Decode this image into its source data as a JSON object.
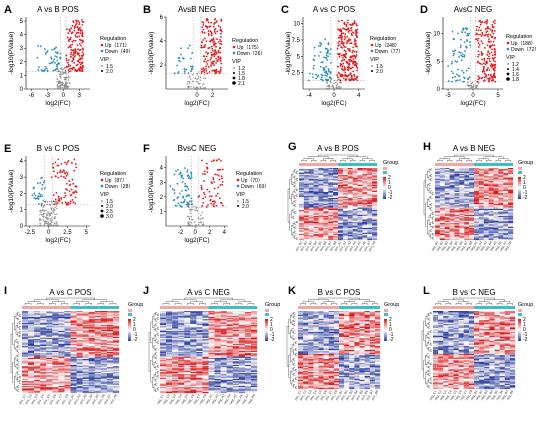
{
  "figure": {
    "title": ""
  },
  "colors": {
    "up": "#e41a1c",
    "down": "#2b8cbe",
    "ns": "#8c8c8c",
    "heat_high": "#d7191c",
    "heat_mid": "#ffffff",
    "heat_low": "#2c3e9e",
    "group_a": "#f4a6a0",
    "group_b": "#3cc0c5"
  },
  "chart_data": [
    {
      "id": "A",
      "type": "scatter",
      "title": "A vs B POS",
      "xlabel": "log2(FC)",
      "ylabel": "-log10(PValue)",
      "xlim": [
        -7,
        5
      ],
      "ylim": [
        0,
        5.3
      ],
      "xticks": [
        -6,
        -3,
        0,
        3
      ],
      "yticks": [
        0,
        1,
        2,
        3,
        4,
        5
      ],
      "legend": {
        "heading": "Regulation",
        "up": "Up（171）",
        "down": "Down（49）",
        "vip_heading": "VIP",
        "vip": [
          "1.5",
          "2.0"
        ]
      },
      "up_count": 171,
      "down_count": 49,
      "ns_count": 120,
      "up_range": {
        "x": [
          0.5,
          3.8
        ],
        "y": [
          1.3,
          5.1
        ]
      },
      "down_range": {
        "x": [
          -5.5,
          -0.5
        ],
        "y": [
          1.3,
          3.2
        ]
      }
    },
    {
      "id": "B",
      "type": "scatter",
      "title": "AvsB NEG",
      "xlabel": "log2(FC)",
      "ylabel": "-log10(PValue)",
      "xlim": [
        -4,
        4
      ],
      "ylim": [
        0,
        6
      ],
      "xticks": [
        0,
        2
      ],
      "yticks": [
        2,
        4,
        6
      ],
      "legend": {
        "heading": "Regulation",
        "up": "Up（175）",
        "down": "Down（26）",
        "vip_heading": "VIP",
        "vip": [
          "1.2",
          "1.5",
          "1.8",
          "2.1"
        ]
      },
      "up_count": 175,
      "down_count": 26,
      "ns_count": 60,
      "up_range": {
        "x": [
          0.5,
          3.2
        ],
        "y": [
          1.3,
          6.0
        ]
      },
      "down_range": {
        "x": [
          -3.5,
          -0.5
        ],
        "y": [
          1.3,
          3.8
        ]
      }
    },
    {
      "id": "C",
      "type": "scatter",
      "title": "A vs C POS",
      "xlabel": "log2(FC)",
      "ylabel": "-log10(PValue)",
      "xlim": [
        -5,
        5
      ],
      "ylim": [
        0,
        11
      ],
      "xticks": [
        -4,
        0,
        4
      ],
      "yticks": [
        2.5,
        5.0,
        7.5,
        10.0
      ],
      "legend": {
        "heading": "Regulation",
        "up": "Up（248）",
        "down": "Down（77）",
        "vip_heading": "VIP",
        "vip": [
          "1.5",
          "2.0"
        ]
      },
      "up_count": 248,
      "down_count": 77,
      "ns_count": 60,
      "up_range": {
        "x": [
          0.5,
          3.8
        ],
        "y": [
          1.3,
          10.5
        ]
      },
      "down_range": {
        "x": [
          -4.2,
          -0.5
        ],
        "y": [
          1.3,
          8.0
        ]
      }
    },
    {
      "id": "D",
      "type": "scatter",
      "title": "AvsC NEG",
      "xlabel": "log2(FC)",
      "ylabel": "-log10(PValue)",
      "xlim": [
        -6,
        6
      ],
      "ylim": [
        0,
        13
      ],
      "xticks": [
        -5,
        0,
        5
      ],
      "yticks": [
        0,
        5,
        10
      ],
      "legend": {
        "heading": "Regulation",
        "up": "Up（188）",
        "down": "Down（72）",
        "vip_heading": "VIP",
        "vip": [
          "1.2",
          "1.4",
          "1.6",
          "1.8"
        ]
      },
      "up_count": 188,
      "down_count": 72,
      "ns_count": 40,
      "up_range": {
        "x": [
          0.5,
          4.5
        ],
        "y": [
          1.3,
          12.5
        ]
      },
      "down_range": {
        "x": [
          -5,
          -0.5
        ],
        "y": [
          1.3,
          11
        ]
      }
    },
    {
      "id": "E",
      "type": "scatter",
      "title": "B vs C POS",
      "xlabel": "log2(FC)",
      "ylabel": "-log10(PValue)",
      "xlim": [
        -3,
        5.5
      ],
      "ylim": [
        0,
        4.3
      ],
      "xticks": [
        -2.5,
        0.0,
        2.5,
        5.0
      ],
      "yticks": [
        0,
        1,
        2,
        3,
        4
      ],
      "legend": {
        "heading": "Regulation",
        "up": "Up（87）",
        "down": "Down（28）",
        "vip_heading": "VIP",
        "vip": [
          "1.5",
          "2.0",
          "2.5",
          "3.0"
        ]
      },
      "up_count": 87,
      "down_count": 28,
      "ns_count": 140,
      "up_range": {
        "x": [
          0.4,
          3.8
        ],
        "y": [
          1.3,
          4.1
        ]
      },
      "down_range": {
        "x": [
          -2.4,
          -0.4
        ],
        "y": [
          1.3,
          3.0
        ]
      }
    },
    {
      "id": "F",
      "type": "scatter",
      "title": "BvsC NEG",
      "xlabel": "log2(FC)",
      "ylabel": "-log10(PValue)",
      "xlim": [
        -4,
        4.5
      ],
      "ylim": [
        0,
        4.8
      ],
      "xticks": [
        -2,
        0,
        2,
        4
      ],
      "yticks": [
        1,
        2,
        3,
        4
      ],
      "legend": {
        "heading": "Regulation",
        "up": "Up（70）",
        "down": "Down（69）",
        "vip_heading": "VIP",
        "vip": [
          "1.5",
          "2.0"
        ]
      },
      "up_count": 70,
      "down_count": 69,
      "ns_count": 60,
      "up_range": {
        "x": [
          0.4,
          3.8
        ],
        "y": [
          1.3,
          4.6
        ]
      },
      "down_range": {
        "x": [
          -3.5,
          -0.4
        ],
        "y": [
          1.3,
          4.0
        ]
      }
    },
    {
      "id": "G",
      "type": "heatmap",
      "title": "A vs B POS",
      "legend_title": "Group",
      "scale": [
        "2",
        "1",
        "0",
        "-1",
        "-2"
      ],
      "rows": 60,
      "cols": 16,
      "split": 8,
      "samples": [
        "pos_B1",
        "pos_B2",
        "pos_B3",
        "pos_B4",
        "pos_B5",
        "pos_B6",
        "pos_B7",
        "pos_B8",
        "pos_A1",
        "pos_A2",
        "pos_A3",
        "pos_A4",
        "pos_A5",
        "pos_A6",
        "pos_A7",
        "pos_A8"
      ]
    },
    {
      "id": "H",
      "type": "heatmap",
      "title": "A vs B NEG",
      "legend_title": "Group",
      "scale": [
        "2",
        "1",
        "0",
        "-1",
        "-2"
      ],
      "rows": 60,
      "cols": 16,
      "split": 8,
      "samples": [
        "neg_B1",
        "neg_B2",
        "neg_B3",
        "neg_B4",
        "neg_B5",
        "neg_B6",
        "neg_B7",
        "neg_B8",
        "neg_A1",
        "neg_A2",
        "neg_A3",
        "neg_A4",
        "neg_A5",
        "neg_A6",
        "neg_A7",
        "neg_A8"
      ]
    },
    {
      "id": "I",
      "type": "heatmap",
      "title": "A vs C POS",
      "legend_title": "Group",
      "scale": [
        "2",
        "1",
        "0",
        "-1",
        "-2"
      ],
      "rows": 70,
      "cols": 16,
      "split": 8,
      "samples": [
        "pos_C1",
        "pos_C2",
        "pos_C3",
        "pos_C4",
        "pos_C5",
        "pos_C6",
        "pos_C7",
        "pos_C8",
        "pos_A1",
        "pos_A2",
        "pos_A3",
        "pos_A4",
        "pos_A5",
        "pos_A6",
        "pos_A7",
        "pos_A8"
      ]
    },
    {
      "id": "J",
      "type": "heatmap",
      "title": "A vs C NEG",
      "legend_title": "Group",
      "scale": [
        "2",
        "1",
        "0",
        "-1",
        "-2"
      ],
      "rows": 70,
      "cols": 16,
      "split": 8,
      "samples": [
        "neg_C1",
        "neg_C2",
        "neg_C3",
        "neg_C4",
        "neg_C5",
        "neg_C6",
        "neg_C7",
        "neg_C8",
        "neg_A1",
        "neg_A2",
        "neg_A3",
        "neg_A4",
        "neg_A5",
        "neg_A6",
        "neg_A7",
        "neg_A8"
      ]
    },
    {
      "id": "K",
      "type": "heatmap",
      "title": "B vs C POS",
      "legend_title": "Group",
      "scale": [
        "2",
        "1",
        "0",
        "-1",
        "-2"
      ],
      "rows": 60,
      "cols": 16,
      "split": 8,
      "samples": [
        "pos_C1",
        "pos_C2",
        "pos_C3",
        "pos_C4",
        "pos_C5",
        "pos_C6",
        "pos_C7",
        "pos_C8",
        "pos_B1",
        "pos_B2",
        "pos_B3",
        "pos_B4",
        "pos_B5",
        "pos_B6",
        "pos_B7",
        "pos_B8"
      ]
    },
    {
      "id": "L",
      "type": "heatmap",
      "title": "B vs C NEG",
      "legend_title": "Group",
      "scale": [
        "2",
        "1",
        "0",
        "-1",
        "-2"
      ],
      "rows": 60,
      "cols": 16,
      "split": 8,
      "samples": [
        "neg_C1",
        "neg_C2",
        "neg_C3",
        "neg_C4",
        "neg_C5",
        "neg_C6",
        "neg_C7",
        "neg_C8",
        "neg_B1",
        "neg_B2",
        "neg_B3",
        "neg_B4",
        "neg_B5",
        "neg_B6",
        "neg_B7",
        "neg_B8"
      ]
    }
  ]
}
